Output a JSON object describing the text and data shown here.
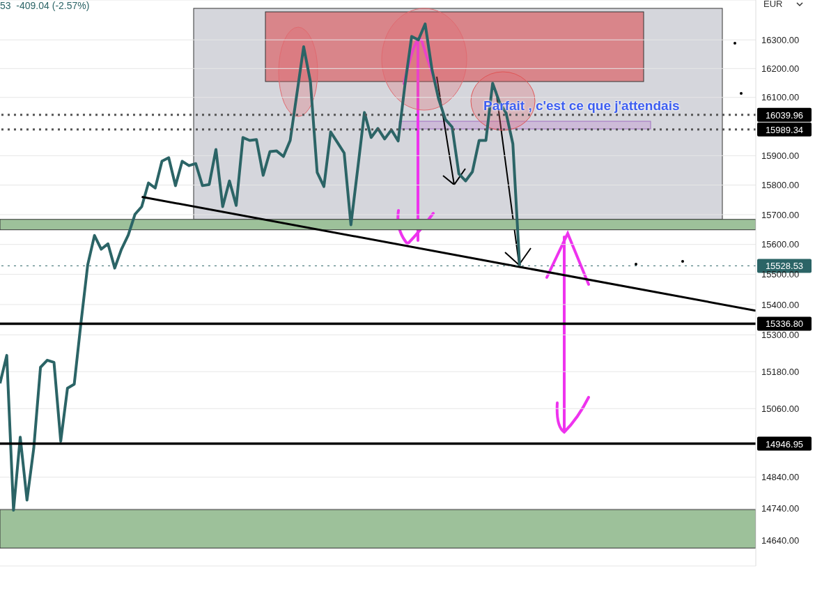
{
  "chart_data": {
    "type": "line",
    "log": true,
    "grid": "y",
    "annotations": [
      "53  -409.04 (-2.57%)",
      "EUR",
      "Parfait , c'est ce que j'attendais"
    ],
    "categories": [
      null,
      null,
      null,
      null,
      null,
      null,
      null,
      null,
      null,
      null,
      null,
      null,
      null,
      null,
      null,
      null,
      null,
      null,
      null,
      null,
      null,
      null,
      null,
      null,
      null,
      null,
      null,
      null,
      null,
      null,
      null,
      null,
      null,
      null,
      null,
      null,
      null,
      null,
      null,
      null,
      null,
      null,
      null,
      null,
      null,
      null,
      null,
      null,
      null,
      null,
      null,
      null,
      null,
      null,
      null,
      null,
      null,
      null,
      null,
      null,
      null,
      null,
      null,
      null,
      null,
      null,
      null,
      null,
      null,
      null,
      null,
      null,
      null,
      null,
      null,
      null,
      null,
      null
    ],
    "series": [
      {
        "color": "#2b6466",
        "values": [
          15142,
          15233,
          14735,
          14968,
          14767,
          14932,
          15194,
          15217,
          15210,
          14955,
          15126,
          15139,
          15340,
          15532,
          15630,
          15584,
          15602,
          15521,
          15584,
          15631,
          15701,
          15727,
          15807,
          15790,
          15881,
          15893,
          15798,
          15881,
          15866,
          15873,
          15798,
          15802,
          15921,
          15727,
          15814,
          15731,
          15962,
          15952,
          15955,
          15833,
          15914,
          15916,
          15897,
          15952,
          16113,
          16276,
          16154,
          15843,
          15795,
          15981,
          15945,
          15909,
          15666,
          15854,
          16048,
          15962,
          15993,
          15957,
          15988,
          15950,
          16142,
          16312,
          16300,
          16356,
          16198,
          16094,
          16024,
          15998,
          15838,
          15814,
          15845,
          15952,
          15952,
          16149,
          16084,
          16046,
          15940,
          15528.53
        ]
      },
      {
        "type": "line",
        "color": "#000000",
        "values": [
          null,
          null,
          null,
          null,
          null,
          null,
          null,
          null,
          null,
          null,
          null,
          null,
          null,
          null,
          null,
          null,
          null,
          null,
          null,
          null,
          null,
          15760,
          null,
          null,
          null,
          null,
          null,
          null,
          null,
          null,
          null,
          null,
          null,
          null,
          null,
          null,
          null,
          null,
          null,
          null,
          null,
          null,
          null,
          null,
          null,
          null,
          null,
          null,
          null,
          null,
          null,
          null,
          null,
          null,
          null,
          null,
          null,
          null,
          null,
          null,
          null,
          null,
          null,
          null,
          null,
          null,
          null,
          null,
          null,
          null,
          null,
          null,
          null,
          null,
          null,
          null,
          null,
          15525
        ]
      }
    ],
    "ylim": [
      14560,
      16440
    ],
    "yticks": [
      {
        "value": 14640,
        "label": "14640.00"
      },
      {
        "value": 14740,
        "label": "14740.00"
      },
      {
        "value": 14840,
        "label": "14840.00"
      },
      {
        "value": 15060,
        "label": "15060.00"
      },
      {
        "value": 15180,
        "label": "15180.00"
      },
      {
        "value": 15300,
        "label": "15300.00"
      },
      {
        "value": 15400,
        "label": "15400.00"
      },
      {
        "value": 15500,
        "label": "15500.00"
      },
      {
        "value": 15600,
        "label": "15600.00"
      },
      {
        "value": 15700,
        "label": "15700.00"
      },
      {
        "value": 15800,
        "label": "15800.00"
      },
      {
        "value": 15900,
        "label": "15900.00"
      },
      {
        "value": 16100,
        "label": "16100.00"
      },
      {
        "value": 16200,
        "label": "16200.00"
      },
      {
        "value": 16300,
        "label": "16300.00"
      }
    ],
    "ref_lines": [
      {
        "axis": "y",
        "value": 16039.96,
        "label": "16039.96",
        "color": "#555555",
        "line_style": "dotted"
      },
      {
        "axis": "y",
        "value": 15989.34,
        "label": "15989.34",
        "color": "#555555",
        "line_style": "dotted"
      },
      {
        "axis": "y",
        "value": 15528.53,
        "label": "15528.53",
        "color": "#2b6466",
        "line_style": "dotted"
      },
      {
        "axis": "y",
        "value": 15336.8,
        "label": "15336.80",
        "color": "#000000",
        "line_style": "solid"
      },
      {
        "axis": "y",
        "value": 14946.95,
        "label": "14946.95",
        "color": "#000000",
        "line_style": "solid"
      }
    ],
    "bands": [
      {
        "axis": "y",
        "from": 15649,
        "to": 15684,
        "color": "#9dc19a"
      },
      {
        "axis": "y",
        "from": 14616,
        "to": 14737,
        "color": "#9dc19a"
      }
    ]
  }
}
